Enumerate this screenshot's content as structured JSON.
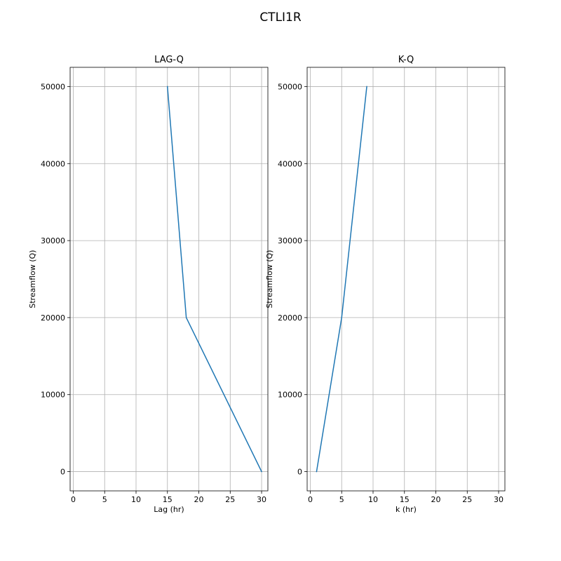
{
  "figure": {
    "title": "CTLI1R"
  },
  "chart_data": [
    {
      "type": "line",
      "title": "LAG-Q",
      "xlabel": "Lag (hr)",
      "ylabel": "Streamflow (Q)",
      "xlim": [
        -0.5,
        31
      ],
      "ylim": [
        -2500,
        52500
      ],
      "xticks": [
        0,
        5,
        10,
        15,
        20,
        25,
        30
      ],
      "yticks": [
        0,
        10000,
        20000,
        30000,
        40000,
        50000
      ],
      "grid": true,
      "series": [
        {
          "color": "#1f77b4",
          "points": [
            {
              "x": 30,
              "y": 0
            },
            {
              "x": 18,
              "y": 20000
            },
            {
              "x": 15,
              "y": 50000
            }
          ]
        }
      ]
    },
    {
      "type": "line",
      "title": "K-Q",
      "xlabel": "k (hr)",
      "ylabel": "Streamflow (Q)",
      "xlim": [
        -0.5,
        31
      ],
      "ylim": [
        -2500,
        52500
      ],
      "xticks": [
        0,
        5,
        10,
        15,
        20,
        25,
        30
      ],
      "yticks": [
        0,
        10000,
        20000,
        30000,
        40000,
        50000
      ],
      "grid": true,
      "series": [
        {
          "color": "#1f77b4",
          "points": [
            {
              "x": 1,
              "y": 0
            },
            {
              "x": 5,
              "y": 20000
            },
            {
              "x": 9,
              "y": 50000
            }
          ]
        }
      ]
    }
  ]
}
